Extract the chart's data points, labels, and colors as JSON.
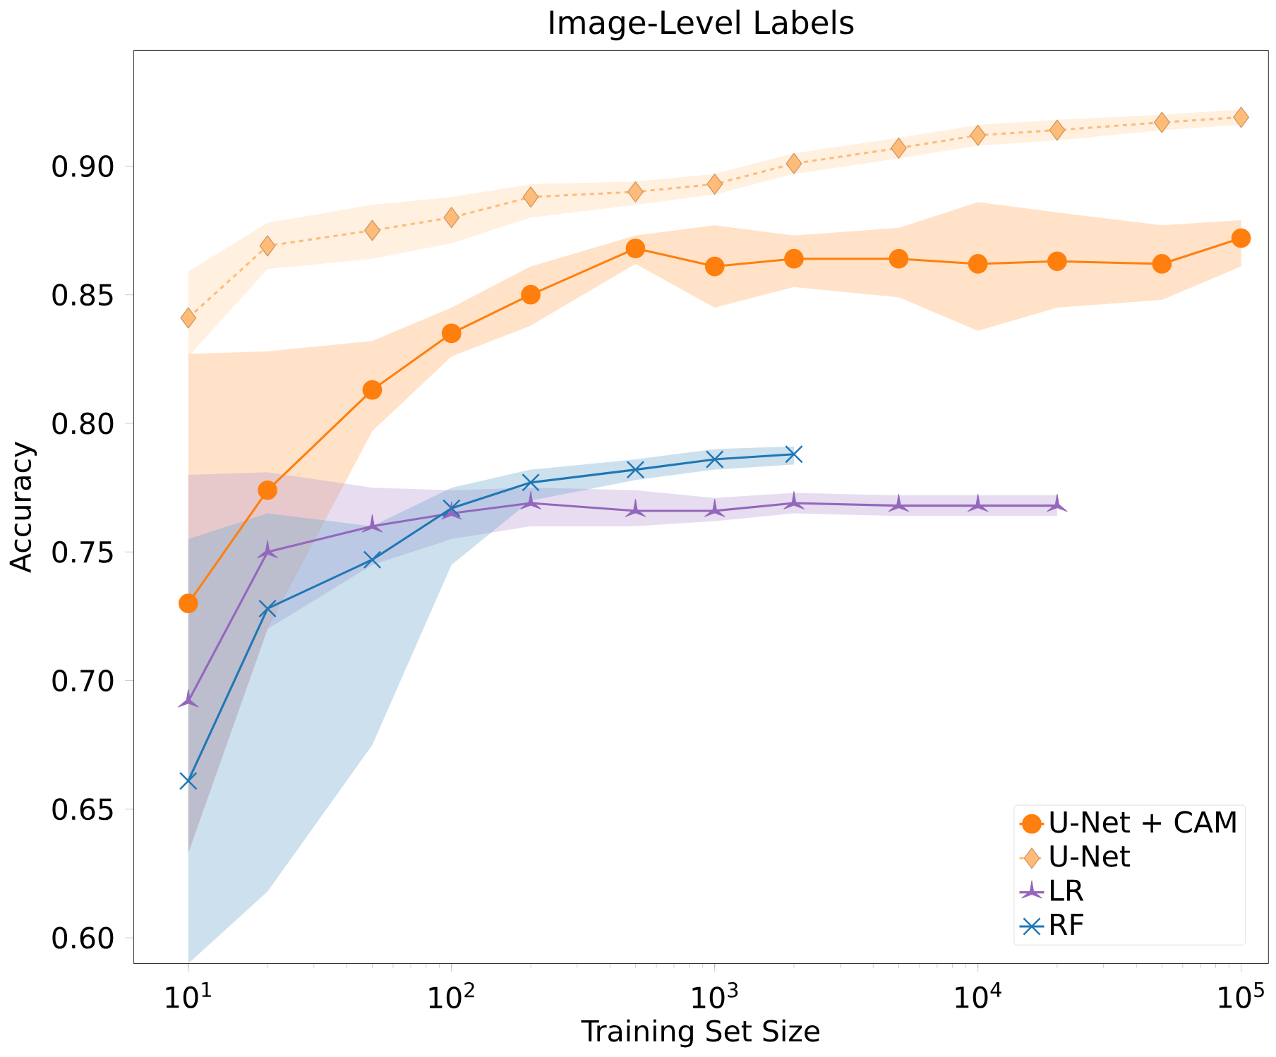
{
  "chart_data": {
    "type": "line",
    "title": "Image-Level Labels",
    "xlabel": "Training Set Size",
    "ylabel": "Accuracy",
    "log": "x",
    "grid": false,
    "legend": "bottom right",
    "xlim": [
      6.2,
      127000
    ],
    "ylim": [
      0.59,
      0.945
    ],
    "xticks": [
      {
        "value": 10,
        "label": "10$^{1}$"
      },
      {
        "value": 100,
        "label": "10$^{2}$"
      },
      {
        "value": 1000,
        "label": "10$^{3}$"
      },
      {
        "value": 10000,
        "label": "10$^{4}$"
      },
      {
        "value": 100000,
        "label": "10$^{5}$"
      }
    ],
    "yticks": [
      {
        "value": 0.6,
        "label": "0.60"
      },
      {
        "value": 0.65,
        "label": "0.65"
      },
      {
        "value": 0.7,
        "label": "0.70"
      },
      {
        "value": 0.75,
        "label": "0.75"
      },
      {
        "value": 0.8,
        "label": "0.80"
      },
      {
        "value": 0.85,
        "label": "0.85"
      },
      {
        "value": 0.9,
        "label": "0.90"
      }
    ],
    "series": [
      {
        "name": "U-Net + CAM",
        "color": "#ff7f0e",
        "marker": "circle",
        "line_style": "solid",
        "x": [
          10,
          20,
          50,
          100,
          200,
          500,
          1000,
          2000,
          5000,
          10000,
          20000,
          50000,
          100000
        ],
        "values": [
          0.73,
          0.774,
          0.813,
          0.835,
          0.85,
          0.868,
          0.861,
          0.864,
          0.864,
          0.862,
          0.863,
          0.862,
          0.872
        ],
        "lower": [
          0.633,
          0.72,
          0.797,
          0.826,
          0.838,
          0.862,
          0.845,
          0.853,
          0.849,
          0.836,
          0.845,
          0.848,
          0.861
        ],
        "upper": [
          0.827,
          0.828,
          0.832,
          0.845,
          0.861,
          0.873,
          0.877,
          0.873,
          0.876,
          0.886,
          0.882,
          0.877,
          0.879
        ]
      },
      {
        "name": "U-Net",
        "color": "#ffbb78",
        "marker": "diamond",
        "line_style": "dashed",
        "x": [
          10,
          20,
          50,
          100,
          200,
          500,
          1000,
          2000,
          5000,
          10000,
          20000,
          50000,
          100000
        ],
        "values": [
          0.841,
          0.869,
          0.875,
          0.88,
          0.888,
          0.89,
          0.893,
          0.901,
          0.907,
          0.912,
          0.914,
          0.917,
          0.919
        ],
        "lower": [
          0.826,
          0.86,
          0.864,
          0.87,
          0.88,
          0.885,
          0.889,
          0.897,
          0.903,
          0.908,
          0.91,
          0.914,
          0.916
        ],
        "upper": [
          0.859,
          0.878,
          0.885,
          0.888,
          0.893,
          0.894,
          0.897,
          0.905,
          0.911,
          0.916,
          0.918,
          0.92,
          0.922
        ]
      },
      {
        "name": "LR",
        "color": "#9467bd",
        "marker": "star",
        "line_style": "solid",
        "x": [
          10,
          20,
          50,
          100,
          200,
          500,
          1000,
          2000,
          5000,
          10000,
          20000
        ],
        "values": [
          0.692,
          0.75,
          0.76,
          0.765,
          0.769,
          0.766,
          0.766,
          0.769,
          0.768,
          0.768,
          0.768
        ],
        "lower": [
          0.633,
          0.72,
          0.745,
          0.755,
          0.76,
          0.76,
          0.762,
          0.765,
          0.764,
          0.764,
          0.764
        ],
        "upper": [
          0.78,
          0.781,
          0.775,
          0.774,
          0.775,
          0.774,
          0.771,
          0.773,
          0.772,
          0.772,
          0.772
        ]
      },
      {
        "name": "RF",
        "color": "#1f77b4",
        "marker": "cross",
        "line_style": "solid",
        "x": [
          10,
          20,
          50,
          100,
          200,
          500,
          1000,
          2000
        ],
        "values": [
          0.661,
          0.728,
          0.747,
          0.767,
          0.777,
          0.782,
          0.786,
          0.788
        ],
        "lower": [
          0.59,
          0.618,
          0.675,
          0.745,
          0.77,
          0.778,
          0.782,
          0.784
        ],
        "upper": [
          0.755,
          0.765,
          0.76,
          0.775,
          0.782,
          0.786,
          0.79,
          0.791
        ]
      }
    ]
  }
}
